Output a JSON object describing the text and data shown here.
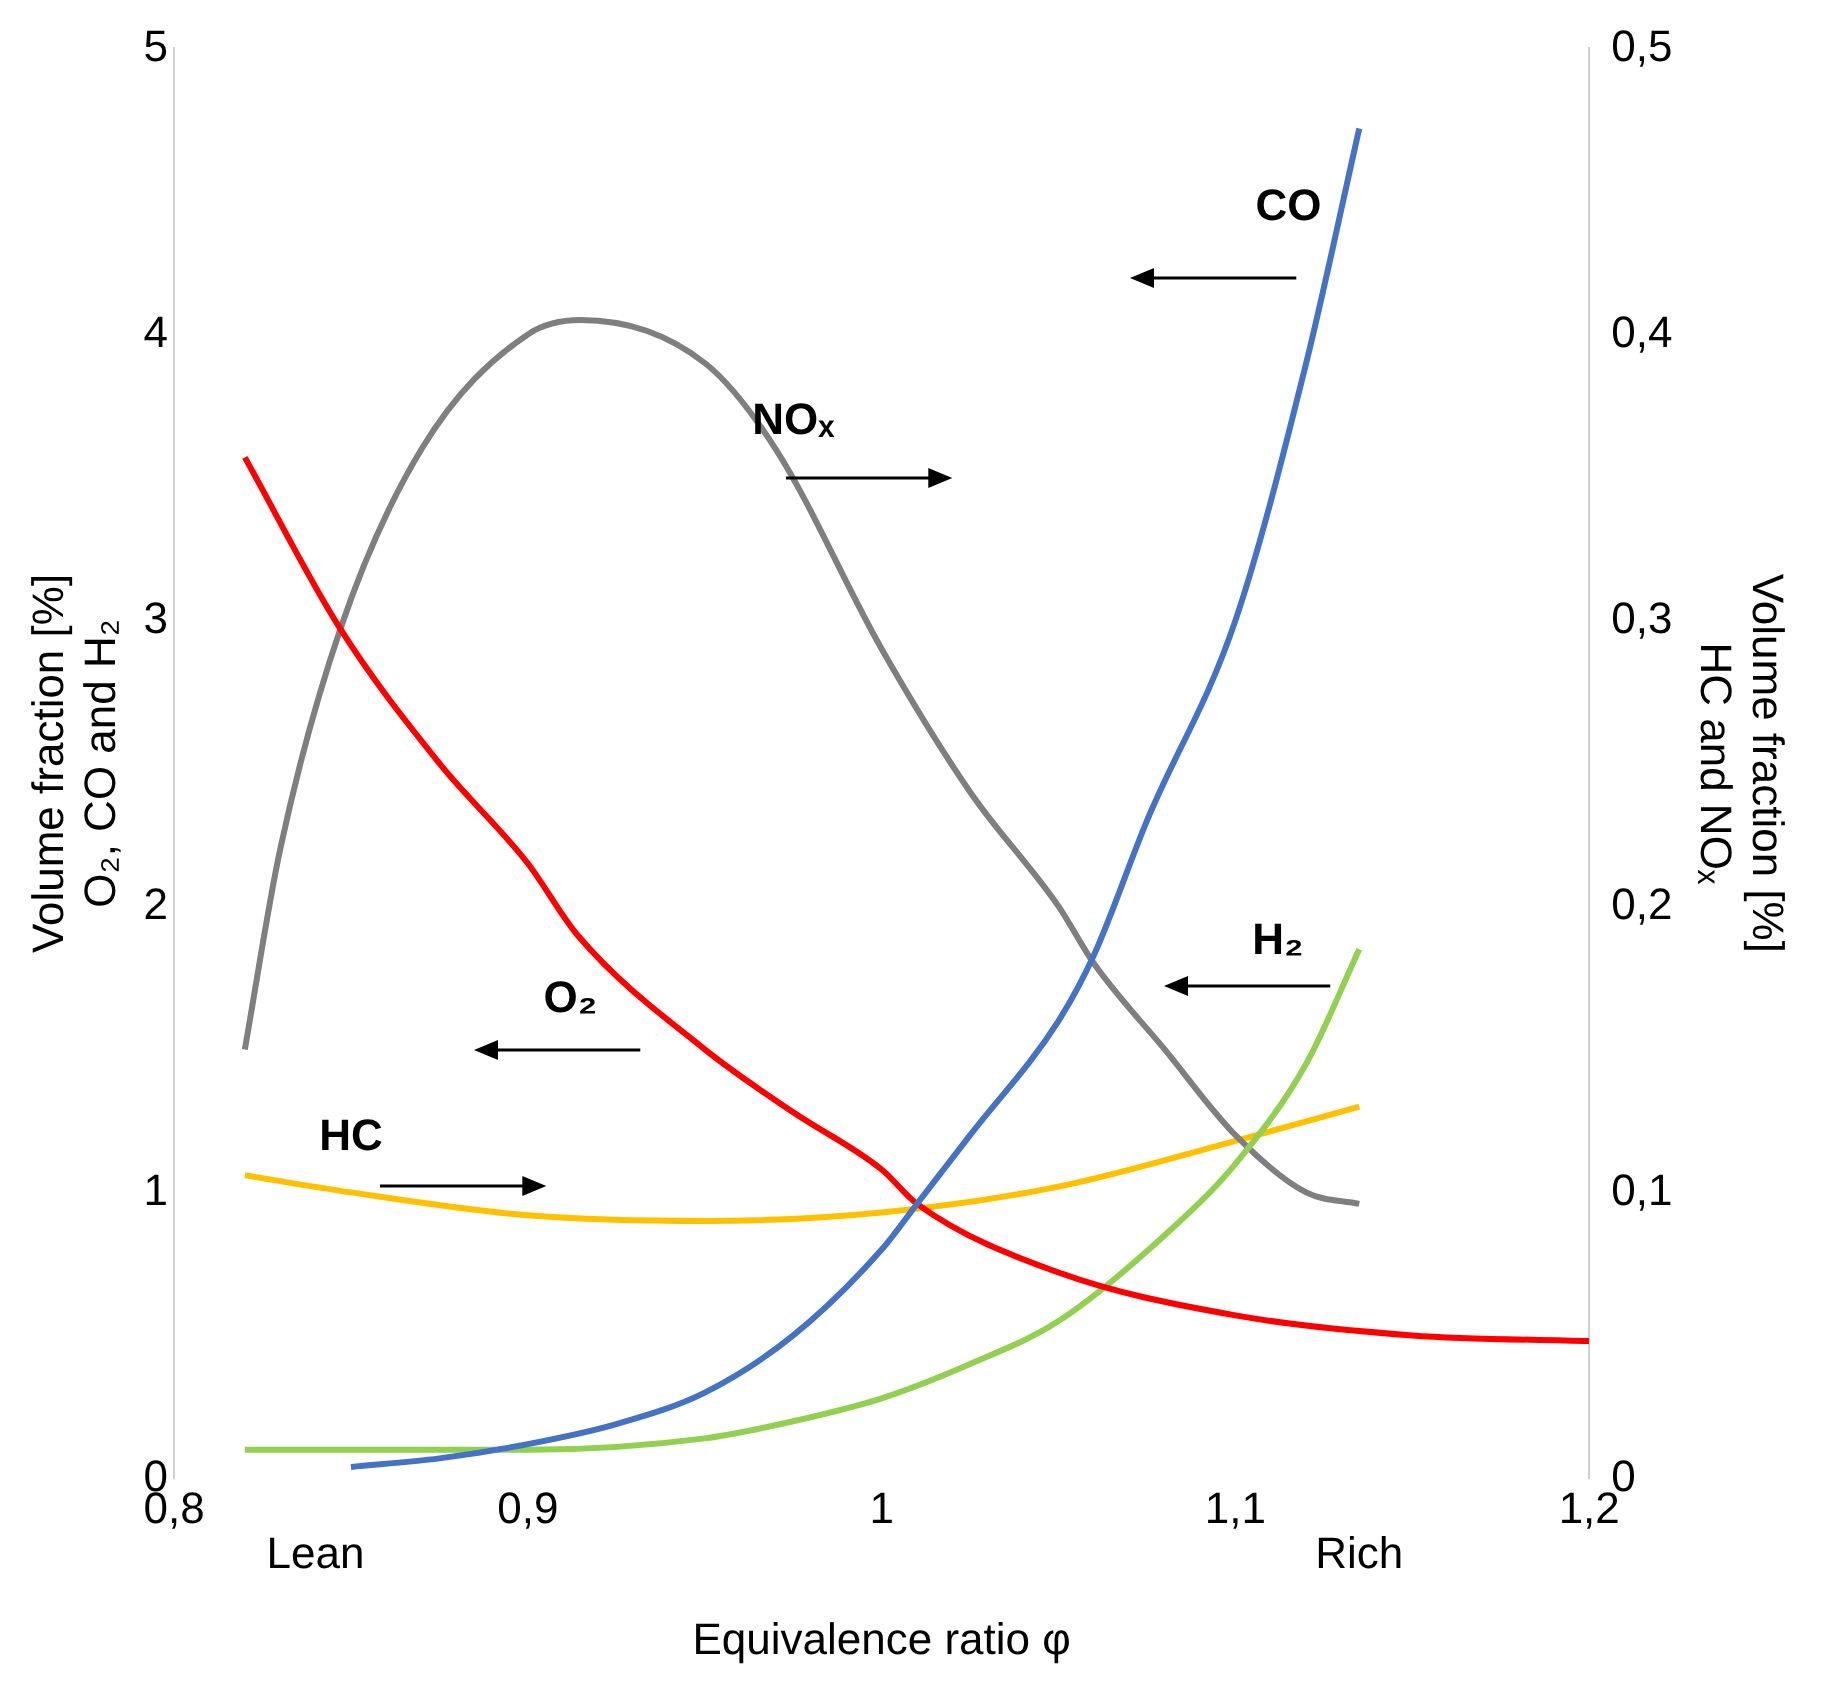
{
  "chart_data": {
    "type": "line",
    "xlabel": "Equivalence ratio φ",
    "ylabel": "Volume fraction [%]\nO₂, CO and H₂",
    "y2label": "Volume fraction [%]\nHC and NOₓ",
    "xlim": [
      0.8,
      1.2
    ],
    "xticks": [
      {
        "value": 0.8,
        "label": "0,8"
      },
      {
        "value": 0.9,
        "label": "0,9"
      },
      1,
      {
        "value": 1.1,
        "label": "1,1"
      },
      {
        "value": 1.2,
        "label": "1,2"
      }
    ],
    "ylim": [
      0,
      5
    ],
    "yticks": [
      0,
      1,
      2,
      3,
      4,
      5
    ],
    "y2lim": [
      0,
      0.5
    ],
    "y2ticks": [
      0,
      {
        "value": 0.1,
        "label": "0,1"
      },
      {
        "value": 0.2,
        "label": "0,2"
      },
      {
        "value": 0.3,
        "label": "0,3"
      },
      {
        "value": 0.4,
        "label": "0,4"
      },
      {
        "value": 0.5,
        "label": "0,5"
      }
    ],
    "grid": false,
    "legend": false,
    "marker": "none",
    "line_style": "solid",
    "annotations": [
      "CO",
      "NOₓ",
      "H₂",
      "O₂",
      "HC",
      "Lean",
      "Rich"
    ],
    "series": [
      {
        "color": "#4472c4",
        "x": [
          0.85,
          0.875,
          0.9,
          0.925,
          0.95,
          0.975,
          1.0,
          1.01,
          1.025,
          1.05,
          1.06,
          1.075,
          1.1,
          1.12,
          1.135
        ],
        "values": [
          0.04,
          0.07,
          0.12,
          0.19,
          0.3,
          0.5,
          0.8,
          0.96,
          1.2,
          1.6,
          1.83,
          2.3,
          3.0,
          3.9,
          4.72
        ]
      },
      {
        "color": "#ff0000",
        "x": [
          0.82,
          0.847,
          0.875,
          0.9,
          0.914,
          0.95,
          0.975,
          1.0,
          1.01,
          1.05,
          1.1,
          1.15,
          1.2
        ],
        "values": [
          3.57,
          2.97,
          2.5,
          2.15,
          1.9,
          1.5,
          1.28,
          1.08,
          0.96,
          0.72,
          0.57,
          0.5,
          0.48
        ]
      },
      {
        "color": "#92d050",
        "x": [
          0.82,
          0.85,
          0.9,
          0.95,
          0.975,
          1.0,
          1.025,
          1.05,
          1.08,
          1.1,
          1.12,
          1.135
        ],
        "values": [
          0.1,
          0.1,
          0.1,
          0.14,
          0.2,
          0.28,
          0.4,
          0.55,
          0.85,
          1.1,
          1.45,
          1.85
        ]
      },
      {
        "color": "#7f7f7f",
        "axis": "y2",
        "x": [
          0.82,
          0.83,
          0.847,
          0.87,
          0.9,
          0.915,
          0.95,
          0.97,
          1.0,
          1.025,
          1.05,
          1.06,
          1.08,
          1.1,
          1.12,
          1.135
        ],
        "values": [
          0.15,
          0.22,
          0.297,
          0.36,
          0.4,
          0.405,
          0.39,
          0.36,
          0.29,
          0.24,
          0.2,
          0.18,
          0.15,
          0.12,
          0.1,
          0.096
        ]
      },
      {
        "color": "#ffc000",
        "axis": "y2",
        "x": [
          0.82,
          0.85,
          0.9,
          0.95,
          1.0,
          1.05,
          1.1,
          1.135
        ],
        "values": [
          0.106,
          0.1,
          0.092,
          0.09,
          0.093,
          0.102,
          0.118,
          0.13
        ]
      }
    ]
  }
}
